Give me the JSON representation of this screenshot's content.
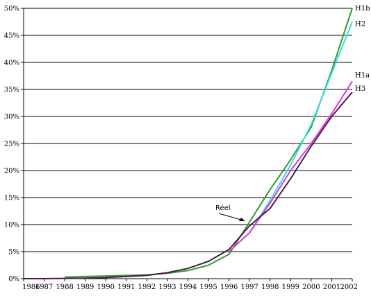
{
  "chart_data": {
    "type": "line",
    "title": "",
    "xlabel": "",
    "ylabel": "",
    "x": [
      1986,
      1987,
      1988,
      1989,
      1990,
      1991,
      1992,
      1993,
      1994,
      1995,
      1996,
      1997,
      1998,
      1999,
      2000,
      2001,
      2002
    ],
    "x_tick_labels": [
      "1986",
      "1987",
      "1988",
      "1989",
      "1990",
      "1991",
      "1992",
      "1993",
      "1994",
      "1995",
      "1996",
      "1997",
      "1998",
      "1999",
      "2000",
      "2001",
      "2002"
    ],
    "y_ticks": [
      0,
      5,
      10,
      15,
      20,
      25,
      30,
      35,
      40,
      45,
      50
    ],
    "y_tick_labels": [
      "0%",
      "5%",
      "10%",
      "15%",
      "20%",
      "25%",
      "30%",
      "35%",
      "40%",
      "45%",
      "50%"
    ],
    "xlim": [
      1986,
      2002
    ],
    "ylim": [
      0,
      50
    ],
    "grid": "horizontal",
    "legend": "none",
    "annotations": [
      {
        "text": "Réel",
        "x": 1997,
        "y": 11
      }
    ],
    "series": [
      {
        "name": "H1b",
        "color": "#2f9b2f",
        "x": [
          1988,
          1989,
          1990,
          1991,
          1992,
          1993,
          1994,
          1995,
          1996,
          1997,
          1998,
          1999,
          2000,
          2001,
          2002
        ],
        "values": [
          0.3,
          0.4,
          0.5,
          0.6,
          0.7,
          1.0,
          1.5,
          2.5,
          4.5,
          10.5,
          16.5,
          22.0,
          28.0,
          38.5,
          50.0
        ]
      },
      {
        "name": "H2",
        "color": "#33e0e6",
        "x": [
          1996,
          1997,
          1998,
          1999,
          2000,
          2001,
          2002
        ],
        "values": [
          5.0,
          8.5,
          14.5,
          21.0,
          28.5,
          38.0,
          47.5
        ]
      },
      {
        "name": "H1a",
        "color": "#e533e0",
        "x": [
          1996,
          1997,
          1998,
          1999,
          2000,
          2001,
          2002
        ],
        "values": [
          5.0,
          8.5,
          14.0,
          20.0,
          25.0,
          30.5,
          36.5
        ]
      },
      {
        "name": "H3",
        "color": "#4a1a4a",
        "x": [
          1986,
          1987,
          1988,
          1989,
          1990,
          1991,
          1992,
          1993,
          1994,
          1995,
          1996,
          1997,
          1998,
          1999,
          2000,
          2001,
          2002
        ],
        "values": [
          0.0,
          0.0,
          0.05,
          0.1,
          0.2,
          0.4,
          0.6,
          1.1,
          1.9,
          3.2,
          5.4,
          9.8,
          13.0,
          18.5,
          24.5,
          30.0,
          34.5
        ]
      }
    ]
  }
}
